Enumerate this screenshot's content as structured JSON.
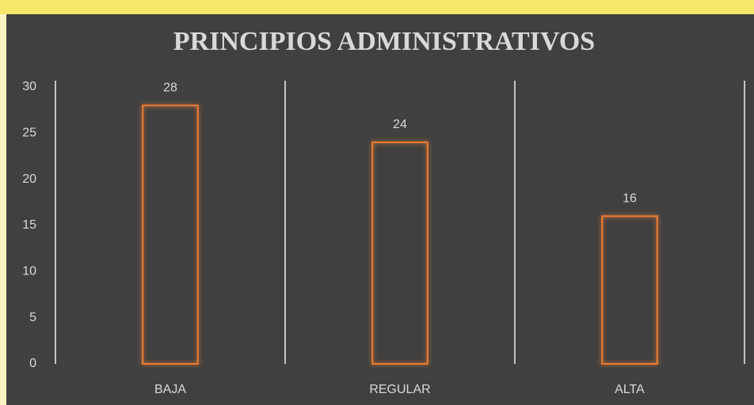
{
  "chart_data": {
    "type": "bar",
    "title": "PRINCIPIOS ADMINISTRATIVOS",
    "categories": [
      "BAJA",
      "REGULAR",
      "ALTA"
    ],
    "values": [
      28,
      24,
      16
    ],
    "color": "#ed7d31",
    "ylim": [
      0,
      30
    ],
    "yticks": [
      0,
      5,
      10,
      15,
      20,
      25,
      30
    ],
    "grid": false
  }
}
